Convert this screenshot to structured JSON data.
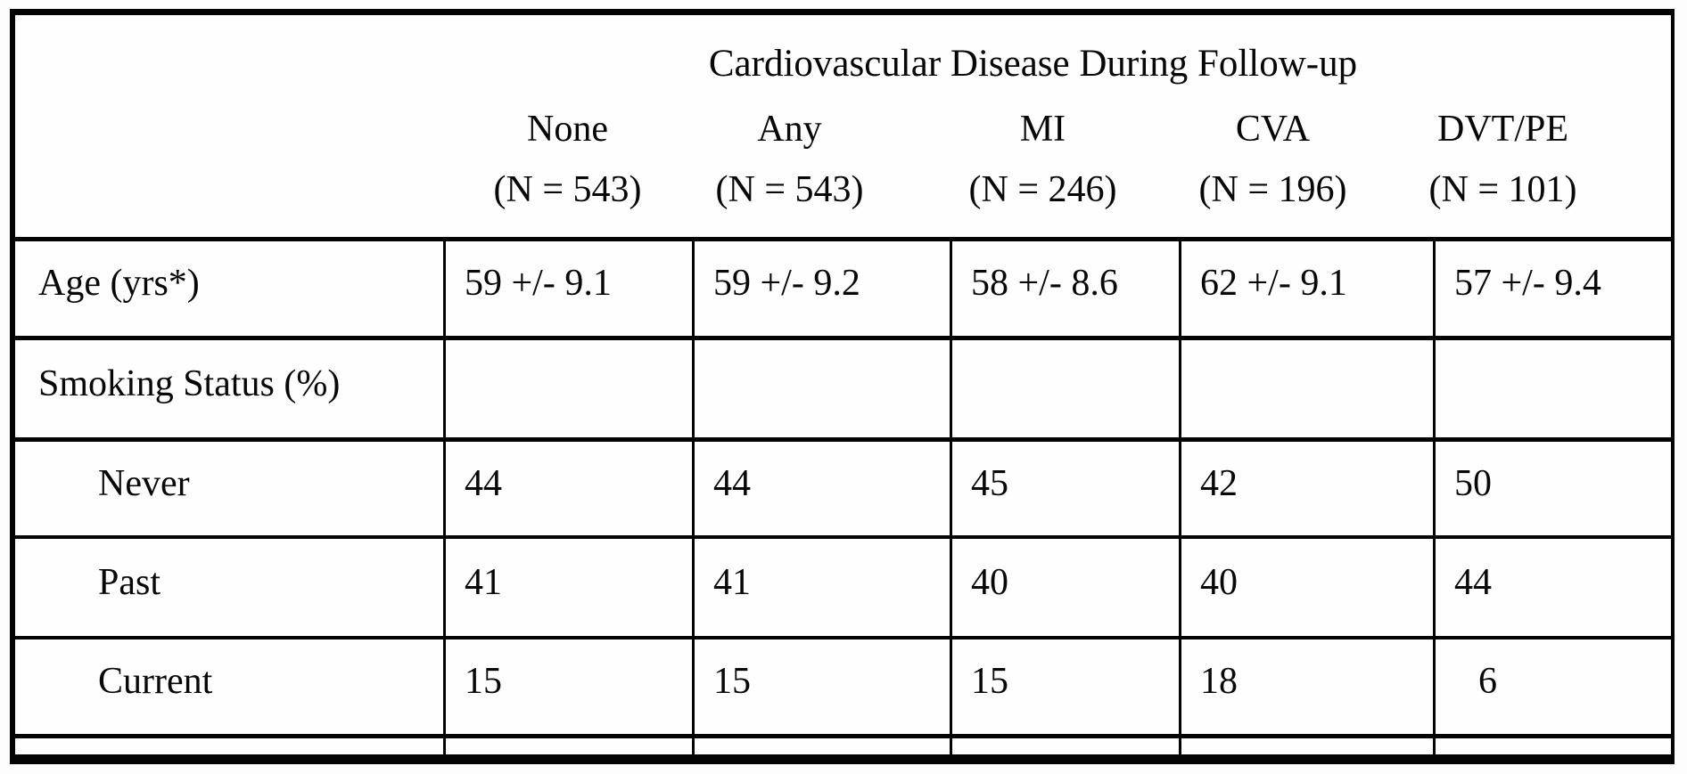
{
  "table": {
    "group_title": "Cardiovascular Disease During Follow-up",
    "columns": [
      {
        "name": "None",
        "n": "(N = 543)"
      },
      {
        "name": "Any",
        "n": "(N = 543)"
      },
      {
        "name": "MI",
        "n": "(N = 246)"
      },
      {
        "name": "CVA",
        "n": "(N = 196)"
      },
      {
        "name": "DVT/PE",
        "n": "(N = 101)"
      }
    ],
    "rows": [
      {
        "label": "Age (yrs*)",
        "indent": false,
        "thin": false,
        "cells": [
          {
            "text": "59 +/- 9.1"
          },
          {
            "text": "59 +/- 9.2"
          },
          {
            "text": "58 +/- 8.6"
          },
          {
            "text": "62 +/- 9.1"
          },
          {
            "text": "57 +/- 9.4"
          }
        ]
      },
      {
        "label": "Smoking Status (%)",
        "indent": false,
        "thin": false,
        "cells": [
          {
            "text": ""
          },
          {
            "text": ""
          },
          {
            "text": ""
          },
          {
            "text": ""
          },
          {
            "text": ""
          }
        ]
      },
      {
        "label": "Never",
        "indent": true,
        "thin": false,
        "cells": [
          {
            "text": "44"
          },
          {
            "text": "44"
          },
          {
            "text": "45"
          },
          {
            "text": "42"
          },
          {
            "text": "50"
          }
        ]
      },
      {
        "label": "Past",
        "indent": true,
        "thin": false,
        "cells": [
          {
            "text": "41"
          },
          {
            "text": "41"
          },
          {
            "text": "40"
          },
          {
            "text": "40"
          },
          {
            "text": "44"
          }
        ]
      },
      {
        "label": "Current",
        "indent": true,
        "thin": false,
        "cells": [
          {
            "text": "15"
          },
          {
            "text": "15"
          },
          {
            "text": "15"
          },
          {
            "text": "18"
          },
          {
            "text": "6",
            "shifted": true
          }
        ]
      },
      {
        "label": "",
        "indent": false,
        "thin": true,
        "cells": [
          {
            "text": ""
          },
          {
            "text": ""
          },
          {
            "text": ""
          },
          {
            "text": ""
          },
          {
            "text": ""
          }
        ]
      }
    ]
  }
}
